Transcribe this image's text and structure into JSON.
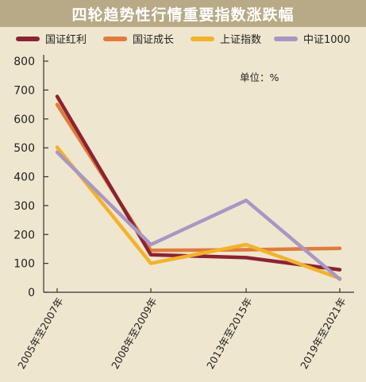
{
  "chart_data": {
    "type": "line",
    "title": "四轮趋势性行情重要指数涨跌幅",
    "unit": "单位：%",
    "categories": [
      "2005年至2007年",
      "2008年至2009年",
      "2013年至2015年",
      "2019年至2021年"
    ],
    "series": [
      {
        "name": "国证红利",
        "color": "#8b2332",
        "values": [
          678,
          130,
          120,
          78
        ]
      },
      {
        "name": "国证成长",
        "color": "#e07b3c",
        "values": [
          650,
          145,
          147,
          152
        ]
      },
      {
        "name": "上证指数",
        "color": "#f2b22a",
        "values": [
          502,
          100,
          165,
          48
        ]
      },
      {
        "name": "中证1000",
        "color": "#a897c4",
        "values": [
          485,
          165,
          318,
          45
        ]
      }
    ],
    "ylim": [
      0,
      800
    ],
    "yticks": [
      0,
      100,
      200,
      300,
      400,
      500,
      600,
      700,
      800
    ],
    "grid": false,
    "legend": "top"
  }
}
